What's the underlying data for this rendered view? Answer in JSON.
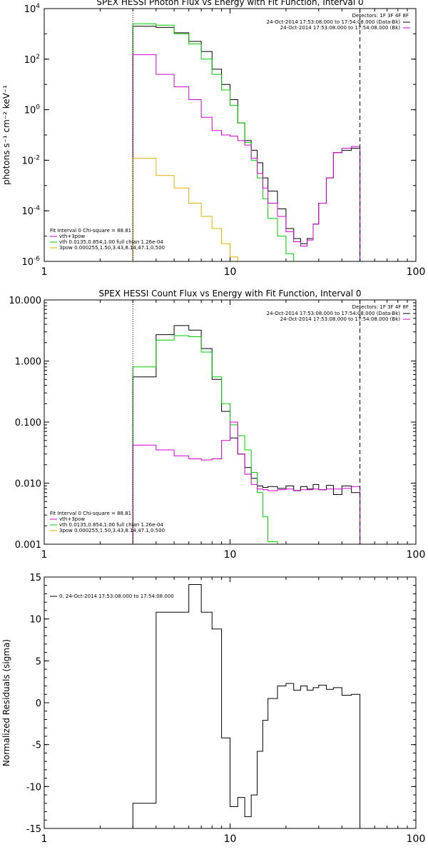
{
  "chart_data": [
    {
      "type": "line",
      "title": "SPEX HESSI Photon Flux vs Energy with Fit Function, Interval 0",
      "ylabel": "photons s⁻¹ cm⁻² keV⁻¹",
      "xlabel": "",
      "x_scale": "log",
      "y_scale": "log",
      "xlim": [
        1,
        100
      ],
      "ylim": [
        1e-06,
        10000.0
      ],
      "x_ticks": [
        {
          "v": 1,
          "label": "1"
        },
        {
          "v": 10,
          "label": "10"
        },
        {
          "v": 100,
          "label": "100"
        }
      ],
      "y_ticks": [
        {
          "v": 1e-06,
          "base": "10",
          "exp": "-6"
        },
        {
          "v": 0.0001,
          "base": "10",
          "exp": "-4"
        },
        {
          "v": 0.01,
          "base": "10",
          "exp": "-2"
        },
        {
          "v": 1,
          "base": "10",
          "exp": "0"
        },
        {
          "v": 100,
          "base": "10",
          "exp": "2"
        },
        {
          "v": 10000,
          "base": "10",
          "exp": "4"
        }
      ],
      "vlines": [
        {
          "x": 3,
          "style": "dotted",
          "color": "#000000"
        },
        {
          "x": 50,
          "style": "dashed",
          "color": "#000000"
        }
      ],
      "legend_right": {
        "title": "Detectors: 1F 3F 4F 8F",
        "entries": [
          {
            "text": "24-Oct-2014 17:53:08.000 to 17:54:08.000 (Data-Bk)",
            "color": "#000000"
          },
          {
            "text": "24-Oct-2014 17:53:08.000 to 17:54:08.000 (Bk)",
            "color": "#d000d0"
          }
        ]
      },
      "legend_left": {
        "title": "Fit Interval 0   Chi-square = 88.81",
        "entries": [
          {
            "text": "vth+3pow",
            "color": "#d000d0"
          },
          {
            "text": "vth 0.0135,0.854,1.00   full chian 1.26e-04",
            "color": "#00cc00"
          },
          {
            "text": "3pow 0.000255,1.50,3.43,8.14,47.1,0.500",
            "color": "#e0b000"
          }
        ]
      },
      "series": [
        {
          "color": "#000000",
          "edges": [
            3,
            4,
            5,
            6,
            7,
            8,
            9,
            10,
            11,
            12,
            13,
            14,
            15,
            16,
            18,
            20,
            22,
            24,
            26,
            28,
            30,
            33,
            36,
            40,
            45,
            50
          ],
          "values": [
            2000,
            1800,
            1100,
            500,
            200,
            40,
            10,
            2.5,
            0.3,
            0.06,
            0.025,
            0.008,
            0.002,
            0.0006,
            0.00012,
            2e-05,
            8e-06,
            5e-06,
            8e-06,
            3e-05,
            0.0002,
            0.002,
            0.02,
            0.025,
            0.03
          ]
        },
        {
          "color": "#00cc00",
          "edges": [
            3,
            4,
            5,
            6,
            7,
            8,
            9,
            10,
            11,
            12,
            13,
            14,
            15,
            16,
            18,
            20,
            22
          ],
          "values": [
            2500,
            2200,
            1000,
            400,
            100,
            25,
            6,
            1.5,
            0.3,
            0.05,
            0.01,
            0.002,
            0.0003,
            5e-05,
            1e-05,
            2e-06
          ]
        },
        {
          "color": "#d000d0",
          "edges": [
            3,
            4,
            5,
            6,
            7,
            8,
            9,
            10,
            11,
            12,
            13,
            14,
            15,
            16,
            18,
            20,
            22,
            24,
            26,
            28,
            30,
            33,
            36,
            40,
            45,
            50
          ],
          "values": [
            150,
            25,
            8,
            2.5,
            0.5,
            0.15,
            0.1,
            0.09,
            0.06,
            0.04,
            0.012,
            0.003,
            0.0008,
            0.0002,
            6e-05,
            1.5e-05,
            6e-06,
            4e-06,
            7e-06,
            3e-05,
            0.0002,
            0.002,
            0.02,
            0.03,
            0.035
          ]
        },
        {
          "color": "#e0b000",
          "edges": [
            3,
            4,
            5,
            6,
            7,
            8,
            9,
            10,
            11
          ],
          "values": [
            0.012,
            0.0025,
            0.0008,
            0.0002,
            6e-05,
            2e-05,
            5e-06,
            1.5e-06
          ]
        }
      ]
    },
    {
      "type": "line",
      "title": "SPEX HESSI Count Flux vs Energy with Fit Function, Interval 0",
      "xlabel": "",
      "ylabel": "",
      "x_scale": "log",
      "y_scale": "log",
      "xlim": [
        1,
        100
      ],
      "ylim": [
        0.001,
        10
      ],
      "x_ticks": [
        {
          "v": 1,
          "label": "1"
        },
        {
          "v": 10,
          "label": "10"
        },
        {
          "v": 100,
          "label": "100"
        }
      ],
      "y_ticks": [
        {
          "v": 0.001,
          "label": "0.001"
        },
        {
          "v": 0.01,
          "label": "0.010"
        },
        {
          "v": 0.1,
          "label": "0.100"
        },
        {
          "v": 1,
          "label": "1.000"
        },
        {
          "v": 10,
          "label": "10.000"
        }
      ],
      "vlines": [
        {
          "x": 3,
          "style": "dotted",
          "color": "#000000"
        },
        {
          "x": 50,
          "style": "dashed",
          "color": "#000000"
        }
      ],
      "legend_right": {
        "title": "Detectors: 1F 3F 4F 8F",
        "entries": [
          {
            "text": "24-Oct-2014 17:53:08.000 to 17:54:08.000 (Data-Bk)",
            "color": "#000000"
          },
          {
            "text": "24-Oct-2014 17:53:08.000 to 17:54:08.000 (Bk)",
            "color": "#d000d0"
          }
        ]
      },
      "legend_left": {
        "title": "Fit Interval 0   Chi-square = 88.81",
        "entries": [
          {
            "text": "vth+3pow",
            "color": "#d000d0"
          },
          {
            "text": "vth 0.0135,0.854,1.00   full chian 1.26e-04",
            "color": "#00cc00"
          },
          {
            "text": "3pow 0.000255,1.50,3.43,8.14,47.1,0.500",
            "color": "#e0b000"
          }
        ]
      },
      "series": [
        {
          "color": "#000000",
          "edges": [
            3,
            4,
            5,
            6,
            7,
            8,
            9,
            10,
            11,
            12,
            13,
            14,
            15,
            16,
            18,
            20,
            22,
            24,
            26,
            28,
            30,
            33,
            36,
            40,
            45,
            50
          ],
          "values": [
            0.55,
            2.7,
            3.8,
            3.2,
            1.6,
            0.5,
            0.15,
            0.055,
            0.03,
            0.018,
            0.012,
            0.009,
            0.0085,
            0.0088,
            0.0082,
            0.009,
            0.0075,
            0.0088,
            0.008,
            0.0095,
            0.0078,
            0.0092,
            0.0065,
            0.009,
            0.007
          ]
        },
        {
          "color": "#00cc00",
          "edges": [
            3,
            4,
            5,
            6,
            7,
            8,
            9,
            10,
            11,
            12,
            13,
            14,
            15,
            16,
            18,
            20
          ],
          "values": [
            0.8,
            2.2,
            2.6,
            2.5,
            1.4,
            0.55,
            0.2,
            0.09,
            0.06,
            0.035,
            0.015,
            0.007,
            0.0028,
            0.0011,
            0.0001
          ]
        },
        {
          "color": "#d000d0",
          "edges": [
            3,
            4,
            5,
            6,
            7,
            8,
            9,
            10,
            11,
            12,
            13,
            14,
            15,
            16,
            18,
            20,
            22,
            24,
            26,
            28,
            30,
            33,
            36,
            40,
            45,
            50
          ],
          "values": [
            0.042,
            0.035,
            0.028,
            0.025,
            0.024,
            0.025,
            0.05,
            0.1,
            0.03,
            0.014,
            0.0095,
            0.008,
            0.0078,
            0.0075,
            0.0078,
            0.008,
            0.0076,
            0.0078,
            0.0078,
            0.008,
            0.0078,
            0.008,
            0.008,
            0.0082,
            0.0088
          ]
        }
      ]
    },
    {
      "type": "line",
      "title": "",
      "xlabel": "",
      "ylabel": "Normalized Residuals (sigma)",
      "x_scale": "log",
      "y_scale": "linear",
      "xlim": [
        1,
        100
      ],
      "ylim": [
        -15,
        15
      ],
      "x_ticks": [
        {
          "v": 1,
          "label": "1"
        },
        {
          "v": 10,
          "label": "10"
        },
        {
          "v": 100,
          "label": "100"
        }
      ],
      "y_ticks": [
        {
          "v": 15,
          "label": "15"
        },
        {
          "v": 10,
          "label": "10"
        },
        {
          "v": 5,
          "label": "5"
        },
        {
          "v": 0,
          "label": "0"
        },
        {
          "v": -5,
          "label": "-5"
        },
        {
          "v": -10,
          "label": "-10"
        },
        {
          "v": -15,
          "label": "-15"
        }
      ],
      "vlines": [],
      "legend_left": {
        "title": "",
        "entries": [
          {
            "text": "0. 24-Oct-2014 17:53:08.000 to 17:54:08.000",
            "color": "#000000"
          }
        ]
      },
      "series": [
        {
          "color": "#000000",
          "edges": [
            3,
            4,
            5,
            6,
            7,
            8,
            9,
            10,
            11,
            12,
            13,
            14,
            15,
            16,
            18,
            20,
            22,
            24,
            26,
            28,
            30,
            33,
            36,
            40,
            45,
            50
          ],
          "values": [
            -12.0,
            10.8,
            10.8,
            14.1,
            10.8,
            8.8,
            -4.2,
            -12.4,
            -11.3,
            -13.6,
            -11.0,
            -5.8,
            -2.1,
            0.5,
            2.0,
            2.3,
            1.5,
            2.0,
            1.5,
            1.8,
            2.1,
            1.6,
            1.8,
            0.9,
            1.0
          ]
        }
      ]
    }
  ]
}
